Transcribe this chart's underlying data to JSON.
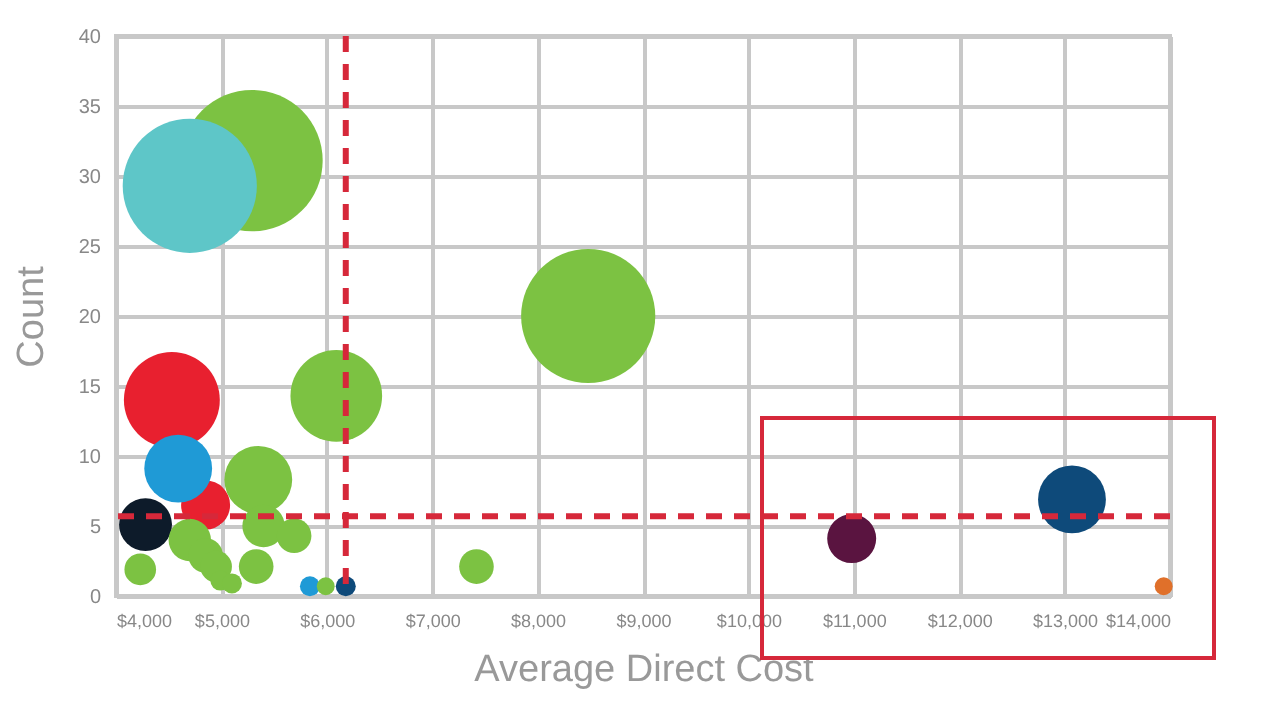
{
  "chart_data": {
    "type": "bubble",
    "xlabel": "Average Direct Cost",
    "ylabel": "Count",
    "x": [
      5290,
      4700,
      8480,
      4530,
      6090,
      4850,
      4590,
      5350,
      13070,
      4280,
      10980,
      5400,
      4700,
      5690,
      4850,
      5330,
      4950,
      7420,
      4230,
      4990,
      5100,
      5840,
      5990,
      6180,
      13940
    ],
    "values": [
      31.1,
      29.3,
      20,
      14,
      14.3,
      6.5,
      9.1,
      8.3,
      6.9,
      5.1,
      4.1,
      5,
      4,
      4.3,
      2.9,
      2.1,
      2.1,
      2.1,
      1.9,
      1.1,
      0.9,
      0.7,
      0.7,
      0.7,
      0.7
    ],
    "sizes": [
      1,
      0.9,
      0.9,
      0.46,
      0.42,
      0.12,
      0.23,
      0.23,
      0.23,
      0.14,
      0.12,
      0.09,
      0.09,
      0.06,
      0.06,
      0.06,
      0.05,
      0.06,
      0.05,
      0.02,
      0.02,
      0.02,
      0.016,
      0.02,
      0.016
    ],
    "colors": [
      "#7cc242",
      "#5ec6c8",
      "#7cc242",
      "#e8202f",
      "#7cc242",
      "#e8202f",
      "#1f9ad6",
      "#7cc242",
      "#0e4a7a",
      "#0d1b2a",
      "#5a1440",
      "#7cc242",
      "#7cc242",
      "#7cc242",
      "#7cc242",
      "#7cc242",
      "#7cc242",
      "#7cc242",
      "#7cc242",
      "#7cc242",
      "#7cc242",
      "#1f9ad6",
      "#7cc242",
      "#0e4a7a",
      "#e0702a"
    ],
    "xlim": [
      4000,
      14000
    ],
    "xticks": [
      {
        "value": 4000,
        "label": "$4,000"
      },
      {
        "value": 5000,
        "label": "$5,000"
      },
      {
        "value": 6000,
        "label": "$6,000"
      },
      {
        "value": 7000,
        "label": "$7,000"
      },
      {
        "value": 8000,
        "label": "$8,000"
      },
      {
        "value": 9000,
        "label": "$9,000"
      },
      {
        "value": 10000,
        "label": "$10,000"
      },
      {
        "value": 11000,
        "label": "$11,000"
      },
      {
        "value": 12000,
        "label": "$12,000"
      },
      {
        "value": 13000,
        "label": "$13,000"
      },
      {
        "value": 14000,
        "label": "$14,000"
      }
    ],
    "ylim": [
      0,
      40
    ],
    "yticks": [
      0,
      5,
      10,
      15,
      20,
      25,
      30,
      35,
      40
    ],
    "grid": true,
    "ref_lines": [
      {
        "axis": "x",
        "value": 6180,
        "color": "#d6283a",
        "line_style": "dashed"
      },
      {
        "axis": "y",
        "value": 5.7,
        "color": "#d6283a",
        "line_style": "dashed"
      }
    ]
  }
}
